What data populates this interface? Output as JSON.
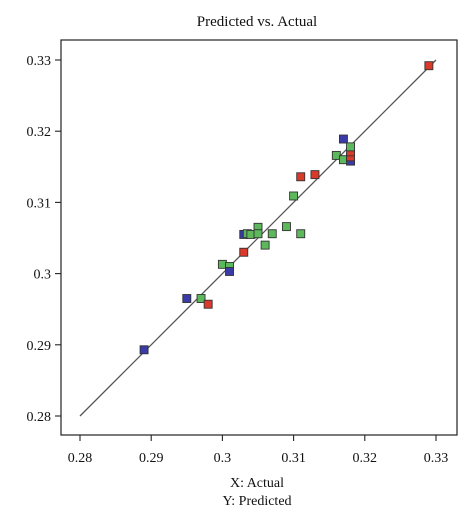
{
  "chart_data": {
    "type": "scatter",
    "title": "Predicted vs. Actual",
    "xlabel": "X: Actual",
    "ylabel": "Y: Predicted",
    "xlim": [
      0.28,
      0.33
    ],
    "ylim": [
      0.28,
      0.33
    ],
    "x_ticks": [
      "0.28",
      "0.29",
      "0.3",
      "0.31",
      "0.32",
      "0.33"
    ],
    "y_ticks": [
      "0.28",
      "0.29",
      "0.3",
      "0.31",
      "0.32",
      "0.33"
    ],
    "grid": false,
    "reference_line": {
      "from": [
        0.28,
        0.28
      ],
      "to": [
        0.33,
        0.33
      ],
      "color": "#555555"
    },
    "colors": {
      "blue": "#3a3aa8",
      "red": "#d93a2a",
      "green": "#5cb85a"
    },
    "points": [
      {
        "x": 0.289,
        "y": 0.2893,
        "color": "blue"
      },
      {
        "x": 0.295,
        "y": 0.2965,
        "color": "blue"
      },
      {
        "x": 0.297,
        "y": 0.2965,
        "color": "green"
      },
      {
        "x": 0.298,
        "y": 0.2957,
        "color": "red"
      },
      {
        "x": 0.3,
        "y": 0.3013,
        "color": "green"
      },
      {
        "x": 0.301,
        "y": 0.301,
        "color": "green"
      },
      {
        "x": 0.301,
        "y": 0.3003,
        "color": "blue"
      },
      {
        "x": 0.303,
        "y": 0.303,
        "color": "red"
      },
      {
        "x": 0.303,
        "y": 0.3055,
        "color": "blue"
      },
      {
        "x": 0.3035,
        "y": 0.3056,
        "color": "green"
      },
      {
        "x": 0.304,
        "y": 0.3055,
        "color": "green"
      },
      {
        "x": 0.305,
        "y": 0.3065,
        "color": "green"
      },
      {
        "x": 0.305,
        "y": 0.3056,
        "color": "green"
      },
      {
        "x": 0.306,
        "y": 0.304,
        "color": "green"
      },
      {
        "x": 0.307,
        "y": 0.3056,
        "color": "green"
      },
      {
        "x": 0.309,
        "y": 0.3066,
        "color": "green"
      },
      {
        "x": 0.31,
        "y": 0.3109,
        "color": "green"
      },
      {
        "x": 0.311,
        "y": 0.3056,
        "color": "green"
      },
      {
        "x": 0.311,
        "y": 0.3136,
        "color": "red"
      },
      {
        "x": 0.313,
        "y": 0.3139,
        "color": "red"
      },
      {
        "x": 0.316,
        "y": 0.3166,
        "color": "green"
      },
      {
        "x": 0.317,
        "y": 0.316,
        "color": "green"
      },
      {
        "x": 0.317,
        "y": 0.3189,
        "color": "blue"
      },
      {
        "x": 0.318,
        "y": 0.3158,
        "color": "blue"
      },
      {
        "x": 0.318,
        "y": 0.3164,
        "color": "red"
      },
      {
        "x": 0.318,
        "y": 0.3171,
        "color": "red"
      },
      {
        "x": 0.318,
        "y": 0.3178,
        "color": "green"
      },
      {
        "x": 0.329,
        "y": 0.3292,
        "color": "red"
      }
    ]
  }
}
